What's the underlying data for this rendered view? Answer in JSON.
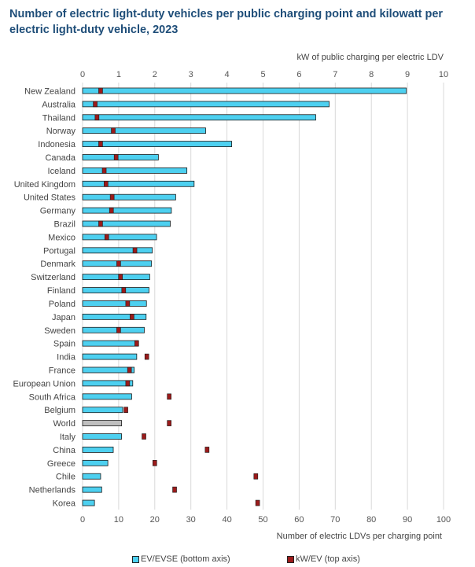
{
  "title": "Number of electric light-duty vehicles per public charging point and kilowatt per electric light-duty vehicle, 2023",
  "chart_data": {
    "type": "bar",
    "orientation": "horizontal",
    "title": "Number of electric light-duty vehicles per public charging point and kilowatt per electric light-duty vehicle, 2023",
    "xlabel_bottom": "Number of electric LDVs per charging point",
    "xlabel_top": "kW of public charging per electric LDV",
    "xlim_bottom": [
      0,
      100
    ],
    "xlim_top": [
      0,
      10
    ],
    "bottom_ticks": [
      "0",
      "10",
      "20",
      "30",
      "40",
      "50",
      "60",
      "70",
      "80",
      "90",
      "100"
    ],
    "top_ticks": [
      "0",
      "1",
      "2",
      "3",
      "4",
      "5",
      "6",
      "7",
      "8",
      "9",
      "10"
    ],
    "grid": true,
    "legend_position": "bottom",
    "categories": [
      "New Zealand",
      "Australia",
      "Thailand",
      "Norway",
      "Indonesia",
      "Canada",
      "Iceland",
      "United Kingdom",
      "United States",
      "Germany",
      "Brazil",
      "Mexico",
      "Portugal",
      "Denmark",
      "Switzerland",
      "Finland",
      "Poland",
      "Japan",
      "Sweden",
      "Spain",
      "India",
      "France",
      "European Union",
      "South Africa",
      "Belgium",
      "World",
      "Italy",
      "China",
      "Greece",
      "Chile",
      "Netherlands",
      "Korea"
    ],
    "highlight_category": "World",
    "series": [
      {
        "name": "EV/EVSE (bottom axis)",
        "axis": "bottom",
        "mark": "bar",
        "values": [
          89.7,
          68.3,
          64.6,
          34.1,
          41.3,
          21.0,
          28.9,
          30.9,
          25.8,
          24.6,
          24.3,
          20.5,
          19.3,
          19.1,
          18.6,
          18.4,
          17.7,
          17.6,
          17.1,
          15.4,
          15.0,
          14.3,
          13.9,
          13.6,
          11.1,
          10.8,
          10.8,
          8.5,
          7.0,
          5.0,
          5.3,
          3.3
        ]
      },
      {
        "name": "kW/EV (top axis)",
        "axis": "top",
        "mark": "point",
        "values": [
          0.5,
          0.35,
          0.4,
          0.85,
          0.5,
          0.93,
          0.6,
          0.65,
          0.82,
          0.8,
          0.5,
          0.67,
          1.45,
          1.0,
          1.05,
          1.14,
          1.25,
          1.37,
          1.0,
          1.5,
          1.78,
          1.3,
          1.25,
          2.4,
          1.2,
          2.4,
          1.7,
          3.45,
          2.0,
          4.8,
          2.55,
          4.85
        ]
      }
    ],
    "colors": {
      "bar": "#4dd0f0",
      "world_bar": "#bfbfbf",
      "point": "#9b1b1b",
      "grid": "#d9d9d9",
      "title": "#1f4e79"
    }
  }
}
